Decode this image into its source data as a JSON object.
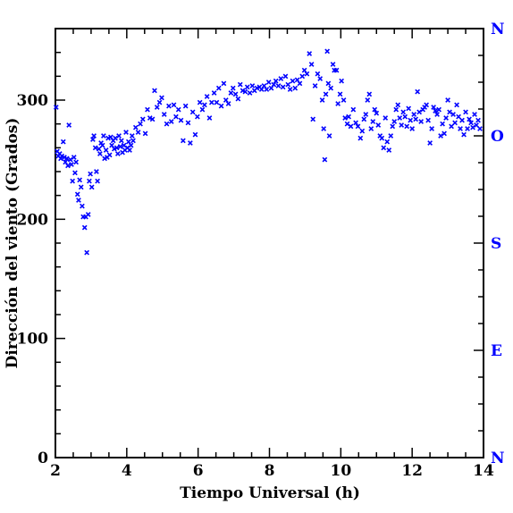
{
  "chart_data": {
    "type": "scatter",
    "xlabel": "Tiempo Universal (h)",
    "ylabel": "Dirección del viento (Grados)",
    "xlim": [
      2,
      14
    ],
    "ylim": [
      0,
      360
    ],
    "x_ticks": [
      2,
      4,
      6,
      8,
      10,
      12,
      14
    ],
    "y_ticks": [
      0,
      100,
      200,
      300
    ],
    "right_axis_labels": [
      {
        "label": "N",
        "value": 0
      },
      {
        "label": "E",
        "value": 90
      },
      {
        "label": "S",
        "value": 180
      },
      {
        "label": "O",
        "value": 270
      },
      {
        "label": "N",
        "value": 360
      }
    ],
    "marker": "x",
    "grid": false,
    "colors": {
      "points": "#0000ff",
      "right_axis": "#0000ff",
      "axes": "#000000"
    },
    "series": [
      {
        "points": [
          [
            2.02,
            294
          ],
          [
            2.05,
            257
          ],
          [
            2.08,
            253
          ],
          [
            2.12,
            255
          ],
          [
            2.15,
            251
          ],
          [
            2.18,
            253
          ],
          [
            2.22,
            265
          ],
          [
            2.25,
            252
          ],
          [
            2.28,
            248
          ],
          [
            2.32,
            251
          ],
          [
            2.35,
            245
          ],
          [
            2.38,
            279
          ],
          [
            2.42,
            250
          ],
          [
            2.45,
            246
          ],
          [
            2.48,
            232
          ],
          [
            2.52,
            252
          ],
          [
            2.55,
            239
          ],
          [
            2.58,
            248
          ],
          [
            2.62,
            221
          ],
          [
            2.65,
            216
          ],
          [
            2.68,
            233
          ],
          [
            2.72,
            227
          ],
          [
            2.75,
            211
          ],
          [
            2.78,
            202
          ],
          [
            2.82,
            193
          ],
          [
            2.85,
            202
          ],
          [
            2.88,
            172
          ],
          [
            2.92,
            204
          ],
          [
            2.95,
            232
          ],
          [
            2.98,
            238
          ],
          [
            3.02,
            227
          ],
          [
            3.05,
            267
          ],
          [
            3.08,
            270
          ],
          [
            3.12,
            260
          ],
          [
            3.15,
            240
          ],
          [
            3.18,
            232
          ],
          [
            3.22,
            259
          ],
          [
            3.25,
            255
          ],
          [
            3.28,
            264
          ],
          [
            3.32,
            262
          ],
          [
            3.35,
            270
          ],
          [
            3.38,
            251
          ],
          [
            3.42,
            258
          ],
          [
            3.45,
            252
          ],
          [
            3.48,
            268
          ],
          [
            3.52,
            254
          ],
          [
            3.55,
            269
          ],
          [
            3.58,
            262
          ],
          [
            3.62,
            266
          ],
          [
            3.65,
            259
          ],
          [
            3.68,
            268
          ],
          [
            3.72,
            260
          ],
          [
            3.75,
            255
          ],
          [
            3.78,
            270
          ],
          [
            3.82,
            261
          ],
          [
            3.85,
            266
          ],
          [
            3.88,
            256
          ],
          [
            3.92,
            262
          ],
          [
            3.95,
            258
          ],
          [
            3.98,
            273
          ],
          [
            4.02,
            260
          ],
          [
            4.05,
            265
          ],
          [
            4.08,
            258
          ],
          [
            4.12,
            262
          ],
          [
            4.15,
            270
          ],
          [
            4.18,
            266
          ],
          [
            4.25,
            277
          ],
          [
            4.32,
            273
          ],
          [
            4.38,
            280
          ],
          [
            4.45,
            284
          ],
          [
            4.52,
            272
          ],
          [
            4.58,
            292
          ],
          [
            4.65,
            285
          ],
          [
            4.72,
            284
          ],
          [
            4.78,
            308
          ],
          [
            4.85,
            294
          ],
          [
            4.92,
            298
          ],
          [
            4.98,
            302
          ],
          [
            5.05,
            288
          ],
          [
            5.12,
            280
          ],
          [
            5.18,
            295
          ],
          [
            5.25,
            282
          ],
          [
            5.32,
            296
          ],
          [
            5.38,
            286
          ],
          [
            5.45,
            292
          ],
          [
            5.52,
            283
          ],
          [
            5.58,
            266
          ],
          [
            5.65,
            295
          ],
          [
            5.72,
            281
          ],
          [
            5.78,
            264
          ],
          [
            5.85,
            290
          ],
          [
            5.92,
            271
          ],
          [
            5.98,
            286
          ],
          [
            6.05,
            298
          ],
          [
            6.12,
            292
          ],
          [
            6.18,
            296
          ],
          [
            6.25,
            303
          ],
          [
            6.32,
            285
          ],
          [
            6.38,
            298
          ],
          [
            6.45,
            306
          ],
          [
            6.52,
            298
          ],
          [
            6.58,
            310
          ],
          [
            6.65,
            295
          ],
          [
            6.72,
            314
          ],
          [
            6.78,
            300
          ],
          [
            6.85,
            297
          ],
          [
            6.92,
            306
          ],
          [
            6.98,
            310
          ],
          [
            7.05,
            305
          ],
          [
            7.12,
            301
          ],
          [
            7.18,
            313
          ],
          [
            7.25,
            308
          ],
          [
            7.32,
            307
          ],
          [
            7.38,
            311
          ],
          [
            7.45,
            306
          ],
          [
            7.52,
            312
          ],
          [
            7.58,
            308
          ],
          [
            7.65,
            310
          ],
          [
            7.72,
            311
          ],
          [
            7.78,
            309
          ],
          [
            7.85,
            312
          ],
          [
            7.92,
            309
          ],
          [
            7.98,
            315
          ],
          [
            8.05,
            310
          ],
          [
            8.12,
            313
          ],
          [
            8.18,
            316
          ],
          [
            8.25,
            312
          ],
          [
            8.32,
            318
          ],
          [
            8.38,
            311
          ],
          [
            8.45,
            320
          ],
          [
            8.52,
            313
          ],
          [
            8.58,
            309
          ],
          [
            8.65,
            316
          ],
          [
            8.72,
            310
          ],
          [
            8.78,
            317
          ],
          [
            8.85,
            314
          ],
          [
            8.92,
            320
          ],
          [
            8.98,
            325
          ],
          [
            9.05,
            322
          ],
          [
            9.12,
            339
          ],
          [
            9.18,
            330
          ],
          [
            9.22,
            284
          ],
          [
            9.28,
            312
          ],
          [
            9.35,
            322
          ],
          [
            9.42,
            318
          ],
          [
            9.48,
            300
          ],
          [
            9.52,
            276
          ],
          [
            9.55,
            250
          ],
          [
            9.58,
            305
          ],
          [
            9.62,
            341
          ],
          [
            9.65,
            314
          ],
          [
            9.68,
            270
          ],
          [
            9.72,
            310
          ],
          [
            9.78,
            330
          ],
          [
            9.82,
            325
          ],
          [
            9.88,
            325
          ],
          [
            9.92,
            297
          ],
          [
            9.98,
            305
          ],
          [
            10.02,
            316
          ],
          [
            10.08,
            300
          ],
          [
            10.12,
            285
          ],
          [
            10.18,
            280
          ],
          [
            10.22,
            286
          ],
          [
            10.28,
            278
          ],
          [
            10.35,
            292
          ],
          [
            10.42,
            281
          ],
          [
            10.48,
            278
          ],
          [
            10.55,
            268
          ],
          [
            10.6,
            274
          ],
          [
            10.65,
            284
          ],
          [
            10.7,
            288
          ],
          [
            10.75,
            300
          ],
          [
            10.8,
            305
          ],
          [
            10.85,
            276
          ],
          [
            10.9,
            282
          ],
          [
            10.95,
            292
          ],
          [
            11.0,
            289
          ],
          [
            11.05,
            279
          ],
          [
            11.1,
            270
          ],
          [
            11.15,
            268
          ],
          [
            11.2,
            260
          ],
          [
            11.25,
            285
          ],
          [
            11.3,
            265
          ],
          [
            11.35,
            258
          ],
          [
            11.4,
            270
          ],
          [
            11.45,
            278
          ],
          [
            11.5,
            282
          ],
          [
            11.55,
            292
          ],
          [
            11.6,
            296
          ],
          [
            11.65,
            285
          ],
          [
            11.7,
            279
          ],
          [
            11.75,
            290
          ],
          [
            11.8,
            286
          ],
          [
            11.85,
            278
          ],
          [
            11.9,
            293
          ],
          [
            11.95,
            283
          ],
          [
            12.0,
            276
          ],
          [
            12.05,
            288
          ],
          [
            12.1,
            284
          ],
          [
            12.15,
            307
          ],
          [
            12.2,
            290
          ],
          [
            12.25,
            282
          ],
          [
            12.3,
            292
          ],
          [
            12.35,
            294
          ],
          [
            12.4,
            296
          ],
          [
            12.45,
            283
          ],
          [
            12.5,
            264
          ],
          [
            12.55,
            276
          ],
          [
            12.6,
            294
          ],
          [
            12.65,
            291
          ],
          [
            12.7,
            288
          ],
          [
            12.75,
            292
          ],
          [
            12.8,
            270
          ],
          [
            12.85,
            280
          ],
          [
            12.9,
            272
          ],
          [
            12.95,
            285
          ],
          [
            13.0,
            300
          ],
          [
            13.05,
            290
          ],
          [
            13.1,
            278
          ],
          [
            13.15,
            288
          ],
          [
            13.2,
            281
          ],
          [
            13.25,
            296
          ],
          [
            13.3,
            286
          ],
          [
            13.35,
            276
          ],
          [
            13.4,
            283
          ],
          [
            13.45,
            271
          ],
          [
            13.5,
            290
          ],
          [
            13.55,
            276
          ],
          [
            13.6,
            284
          ],
          [
            13.65,
            281
          ],
          [
            13.7,
            277
          ],
          [
            13.75,
            288
          ],
          [
            13.8,
            279
          ],
          [
            13.85,
            283
          ],
          [
            13.9,
            276
          ]
        ]
      }
    ]
  }
}
